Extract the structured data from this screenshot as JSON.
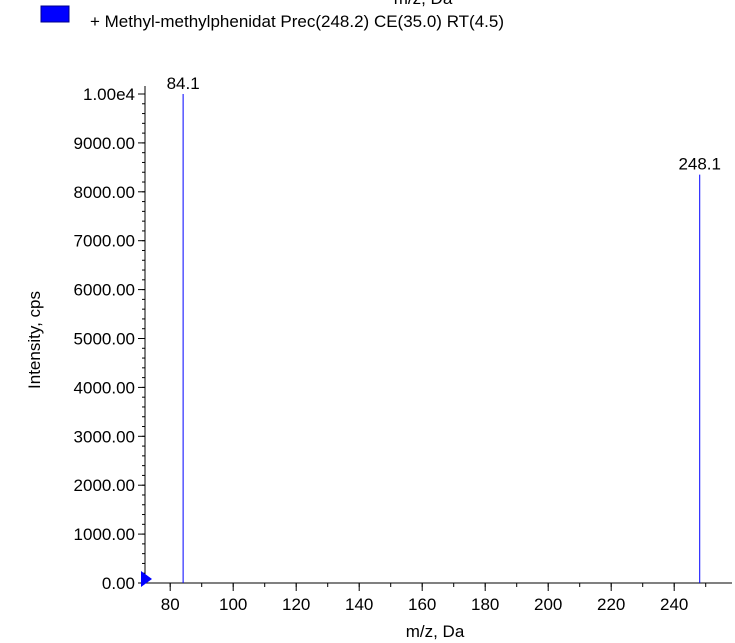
{
  "legend": {
    "swatch_color": "#0000ff",
    "entry": "+ Methyl-methylphenidat Prec(248.2) CE(35.0) RT(4.5)",
    "clipped_top_text": "m/z, Da"
  },
  "chart_data": {
    "type": "bar",
    "xlabel": "m/z, Da",
    "ylabel": "Intensity, cps",
    "xlim": [
      72,
      252
    ],
    "ylim": [
      0,
      10000
    ],
    "x_ticks": [
      80,
      100,
      120,
      140,
      160,
      180,
      200,
      220,
      240
    ],
    "x_tick_labels": [
      "80",
      "100",
      "120",
      "140",
      "160",
      "180",
      "200",
      "220",
      "240"
    ],
    "x_minor_step": 10,
    "y_ticks": [
      0,
      1000,
      2000,
      3000,
      4000,
      5000,
      6000,
      7000,
      8000,
      9000,
      10000
    ],
    "y_tick_labels": [
      "0.00",
      "1000.00",
      "2000.00",
      "3000.00",
      "4000.00",
      "5000.00",
      "6000.00",
      "7000.00",
      "8000.00",
      "9000.00",
      "1.00e4"
    ],
    "y_minor_step": 200,
    "series": [
      {
        "color": "#0000ff",
        "points": [
          {
            "x": 84.1,
            "y": 10000,
            "label": "84.1"
          },
          {
            "x": 248.1,
            "y": 8350,
            "label": "248.1"
          }
        ]
      }
    ],
    "grid": false
  }
}
